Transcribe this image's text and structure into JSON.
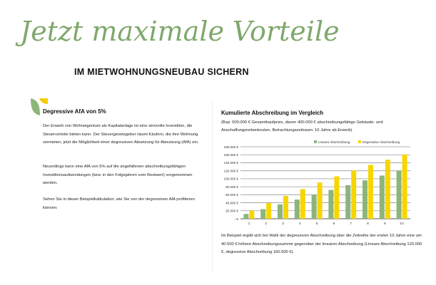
{
  "header": {
    "script_title": "Jetzt maximale Vorteile",
    "subtitle": "IM MIETWOHNUNGSNEUBAU SICHERN"
  },
  "left": {
    "heading": "Degressive AfA von 5%",
    "paragraphs": [
      "Der Erwerb von Wohneigentum als Kapitalanlage ist eine sinnvolle Investition, die Steuervorteile bieten kann. Der Steuergesetzgeber räumt Käufern, die ihre Wohnung vermieten, jetzt die Möglichkeit einer degressiven Absetzung für Abnutzung (AfA) ein.",
      "Neuerdings kann eine AfA von 5% auf die angefallenen abschreibungsfähigen Investitionsaufwendungen (bzw. in den Folgejahren vom Restwert) vorgenommen werden.",
      "Sehen Sie in dieser Beispielkalkulation, wie Sie von der degressiven AfA profitieren können:"
    ]
  },
  "right": {
    "heading": "Kumulierte Abschreibung im Vergleich",
    "subheading": "(Bsp: 500.000 € Gesamtkaufpreis, davon 400.000 € abschreibungsfähige Gebäude- und Anschaffungsnebenkosten, Betrachtungszeitraum: 10 Jahre ab Erwerb)",
    "footer": "Im Beispiel ergibt sich bei Wahl der degressiven Abschreibung über die Zeitreihe der ersten 10 Jahre eine um 40.500 € höhere Abschreibungssumme gegenüber der linearen Abschreibung (Lineare Abschreibung 120.000 €, degressive Abschreibung 160.500 €)."
  },
  "colors": {
    "green": "#8db57a",
    "yellow": "#f7d600",
    "script": "#7fa86c",
    "grid": "#888888"
  },
  "chart_data": {
    "type": "bar",
    "categories": [
      "1",
      "2",
      "3",
      "4",
      "5",
      "6",
      "7",
      "8",
      "9",
      "10"
    ],
    "series": [
      {
        "name": "Lineare Abschreibung",
        "color": "#8db57a",
        "values": [
          12000,
          24000,
          36000,
          48000,
          60000,
          72000,
          84000,
          96000,
          108000,
          120000
        ]
      },
      {
        "name": "Degressive Abschreibung",
        "color": "#f7d600",
        "values": [
          20000,
          39000,
          57050,
          74198,
          90488,
          105963,
          120665,
          134632,
          147900,
          160505
        ]
      }
    ],
    "ylim": [
      0,
      180000
    ],
    "yticks": [
      "- €",
      "20.000 €",
      "40.000 €",
      "60.000 €",
      "80.000 €",
      "100.000 €",
      "120.000 €",
      "140.000 €",
      "160.000 €",
      "180.000 €"
    ],
    "grid": true,
    "legend": "top-right"
  }
}
